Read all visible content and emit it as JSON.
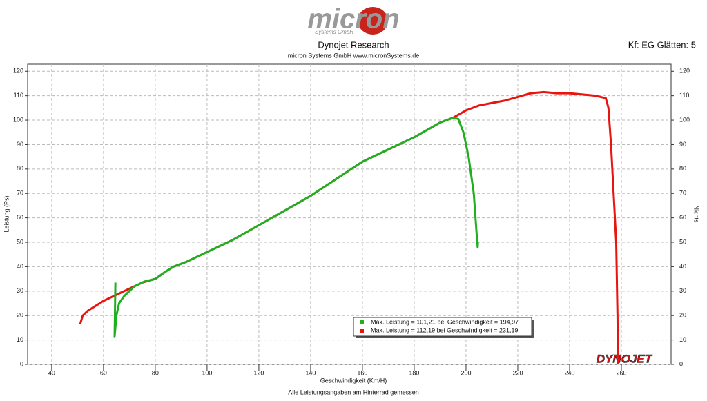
{
  "chart_data": {
    "type": "line",
    "logo": "micron",
    "logo_sub": "Systems GmbH",
    "title": "Dynojet Research",
    "subtitle": "micron Systems GmbH  www.micronSystems.de",
    "settings_label": "Kf: EG Glätten: 5",
    "xlabel": "Geschwindigkeit (Km/H)",
    "ylabel": "Leistung (Ps)",
    "y2label": "Nichts",
    "footnote": "Alle Leistungsangaben am Hinterrad gemessen",
    "brand": "DYNOJET",
    "xlim": [
      30.7,
      279.2
    ],
    "xticks": [
      40,
      60,
      80,
      100,
      120,
      140,
      160,
      180,
      200,
      220,
      240,
      260
    ],
    "ylim": [
      0,
      122.9
    ],
    "yticks": [
      0,
      10,
      20,
      30,
      40,
      50,
      60,
      70,
      80,
      90,
      100,
      110,
      120
    ],
    "y2lim": [
      0,
      122.9
    ],
    "y2ticks": [
      0,
      10,
      20,
      30,
      40,
      50,
      60,
      70,
      80,
      90,
      100,
      110,
      120
    ],
    "grid": true,
    "series": [
      {
        "name": "Max. Leistung = 112,19 bei Geschwindigkeit = 231,19",
        "color": "#e8150f",
        "x": [
          51,
          52,
          54,
          57,
          60,
          65,
          70,
          75,
          80,
          84,
          87,
          92,
          100,
          110,
          120,
          130,
          140,
          150,
          160,
          170,
          180,
          190,
          195,
          200,
          205,
          210,
          215,
          220,
          225,
          230,
          235,
          240,
          245,
          250,
          254,
          255,
          256,
          257,
          258,
          258.5,
          258.7
        ],
        "values": [
          16.5,
          20,
          22,
          24,
          26,
          28.5,
          31,
          33.5,
          35,
          38,
          40,
          42,
          46,
          51,
          57,
          63,
          69,
          76,
          83,
          88,
          93,
          99,
          101,
          104,
          106,
          107,
          108,
          109.5,
          111,
          111.5,
          111,
          111,
          110.5,
          110,
          109,
          105,
          90,
          70,
          50,
          20,
          0
        ]
      },
      {
        "name": "Max. Leistung = 101,21 bei Geschwindigkeit = 194,97",
        "color": "#1fb01f",
        "x": [
          64.6,
          64.3,
          65,
          66,
          68,
          72,
          76,
          80,
          84,
          87,
          92,
          100,
          110,
          120,
          130,
          140,
          150,
          160,
          170,
          180,
          190,
          195,
          197,
          199,
          201,
          203,
          204,
          204.5,
          204.6
        ],
        "values": [
          33.5,
          11.5,
          20,
          25,
          28,
          32,
          34,
          35,
          38,
          40,
          42,
          46,
          51,
          57,
          63,
          69,
          76,
          83,
          88,
          93,
          99,
          101,
          100.5,
          95,
          85,
          70,
          55,
          48,
          50
        ]
      }
    ]
  }
}
